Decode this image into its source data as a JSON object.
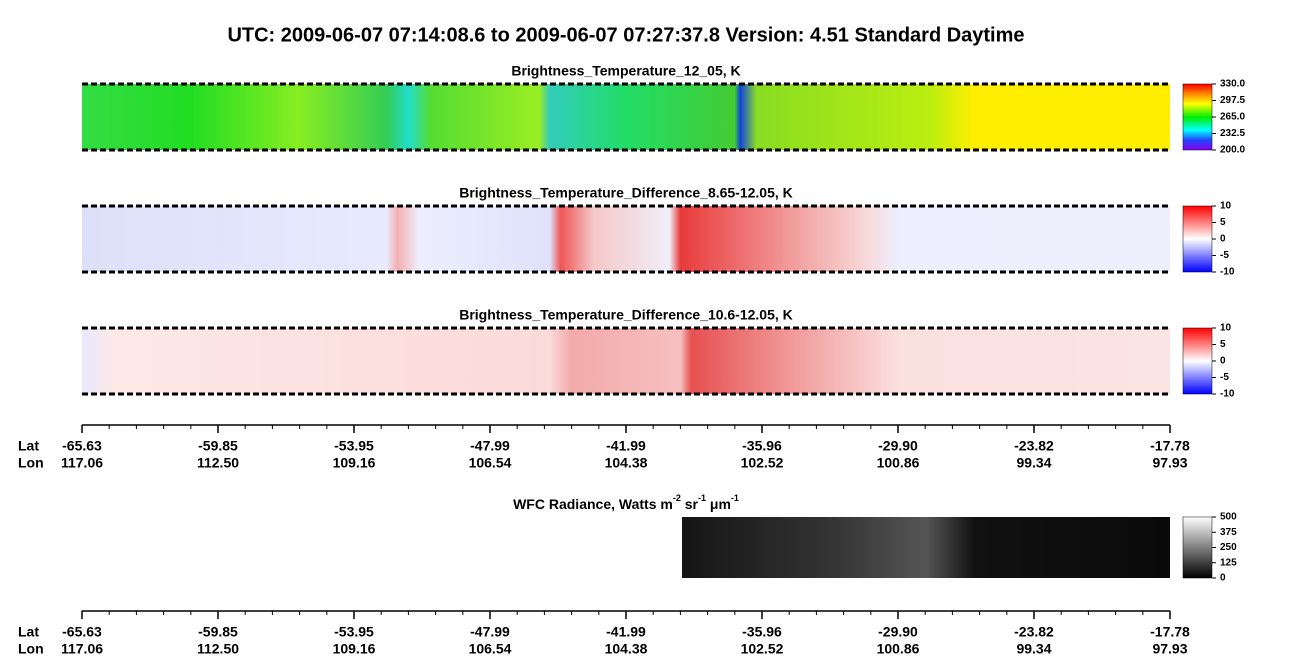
{
  "title": "UTC:  2009-06-07   07:14:08.6  to  2009-06-07   07:27:37.8    Version: 4.51  Standard Daytime",
  "panels": [
    {
      "title": "Brightness_Temperature_12_05, K",
      "colorbar": {
        "lim": [
          200,
          330
        ],
        "ticks": [
          {
            "value": 330,
            "label": "330.0"
          },
          {
            "value": 297.5,
            "label": "297.5"
          },
          {
            "value": 265,
            "label": "265.0"
          },
          {
            "value": 232.5,
            "label": "232.5"
          },
          {
            "value": 200,
            "label": "200.0"
          }
        ]
      }
    },
    {
      "title": "Brightness_Temperature_Difference_8.65-12.05, K",
      "colorbar": {
        "lim": [
          -10,
          10
        ],
        "ticks": [
          10,
          5,
          0,
          -5,
          -10
        ]
      }
    },
    {
      "title": "Brightness_Temperature_Difference_10.6-12.05, K",
      "colorbar": {
        "lim": [
          -10,
          10
        ],
        "ticks": [
          10,
          5,
          0,
          -5,
          -10
        ]
      }
    }
  ],
  "wfc": {
    "title_parts": [
      "WFC Radiance, Watts m",
      "-2",
      " sr",
      "-1",
      " μm",
      "-1"
    ],
    "colorbar": {
      "lim": [
        0,
        500
      ],
      "ticks": [
        500,
        375,
        250,
        125,
        0
      ]
    }
  },
  "axes": [
    {
      "lat_label": "Lat",
      "lon_label": "Lon",
      "lat": [
        -65.63,
        -59.85,
        -53.95,
        -47.99,
        -41.99,
        -35.96,
        {
          "value": -29.9,
          "label": "-29.90"
        },
        -23.82,
        -17.78
      ],
      "lon": [
        117.06,
        {
          "value": 112.5,
          "label": "112.50"
        },
        109.16,
        106.54,
        104.38,
        102.52,
        100.86,
        99.34,
        97.93
      ]
    },
    {
      "lat_label": "Lat",
      "lon_label": "Lon",
      "lat": [
        -65.63,
        -59.85,
        -53.95,
        -47.99,
        -41.99,
        -35.96,
        {
          "value": -29.9,
          "label": "-29.90"
        },
        -23.82,
        -17.78
      ],
      "lon": [
        117.06,
        {
          "value": 112.5,
          "label": "112.50"
        },
        109.16,
        106.54,
        104.38,
        102.52,
        100.86,
        99.34,
        97.93
      ]
    }
  ]
}
